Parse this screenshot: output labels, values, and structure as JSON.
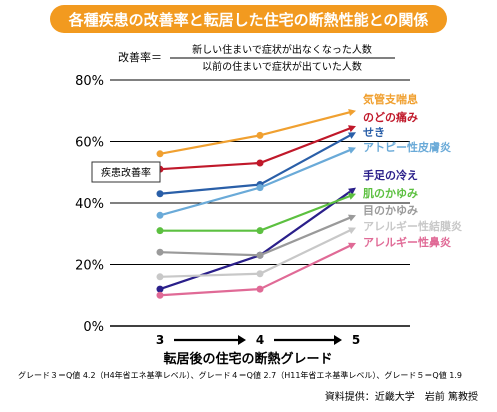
{
  "title": "各種疾患の改善率と転居した住宅の断熱性能との関係",
  "formula": {
    "lhs": "改善率＝",
    "numerator": "新しい住まいで症状が出なくなった人数",
    "denominator": "以前の住まいで症状が出ていた人数"
  },
  "chart_data": {
    "type": "line",
    "x": [
      3,
      4,
      5
    ],
    "xlabel": "転居後の住宅の断熱グレード",
    "ylabel": "",
    "ylim": [
      0,
      80
    ],
    "yticks": [
      0,
      20,
      40,
      60,
      80
    ],
    "ytick_labels": [
      "0%",
      "20%",
      "40%",
      "60%",
      "80%"
    ],
    "grid": true,
    "annotation": "疾患改善率",
    "series": [
      {
        "name": "気管支喘息",
        "color": "#f0a030",
        "values": [
          56,
          62,
          70
        ]
      },
      {
        "name": "のどの痛み",
        "color": "#c0182a",
        "values": [
          51,
          53,
          65
        ]
      },
      {
        "name": "せき",
        "color": "#2a5fa8",
        "values": [
          43,
          46,
          63
        ]
      },
      {
        "name": "アトピー性皮膚炎",
        "color": "#6aaad8",
        "values": [
          36,
          45,
          58
        ]
      },
      {
        "name": "手足の冷え",
        "color": "#2a1f8a",
        "values": [
          12,
          23,
          45
        ]
      },
      {
        "name": "肌のかゆみ",
        "color": "#5cc040",
        "values": [
          31,
          31,
          43
        ]
      },
      {
        "name": "目のかゆみ",
        "color": "#9a9a9a",
        "values": [
          24,
          23,
          36
        ]
      },
      {
        "name": "アレルギー性結膜炎",
        "color": "#c8c8c8",
        "values": [
          16,
          17,
          32
        ]
      },
      {
        "name": "アレルギー性鼻炎",
        "color": "#e06a96",
        "values": [
          10,
          12,
          27
        ]
      }
    ]
  },
  "footnote": "グレード３＝Q値 4.2（H4年省エネ基準レベル）、グレード４＝Q値 2.7（H11年省エネ基準レベル）、グレード５＝Q値 1.9",
  "source": "資料提供：近畿大学　岩前 篤教授"
}
